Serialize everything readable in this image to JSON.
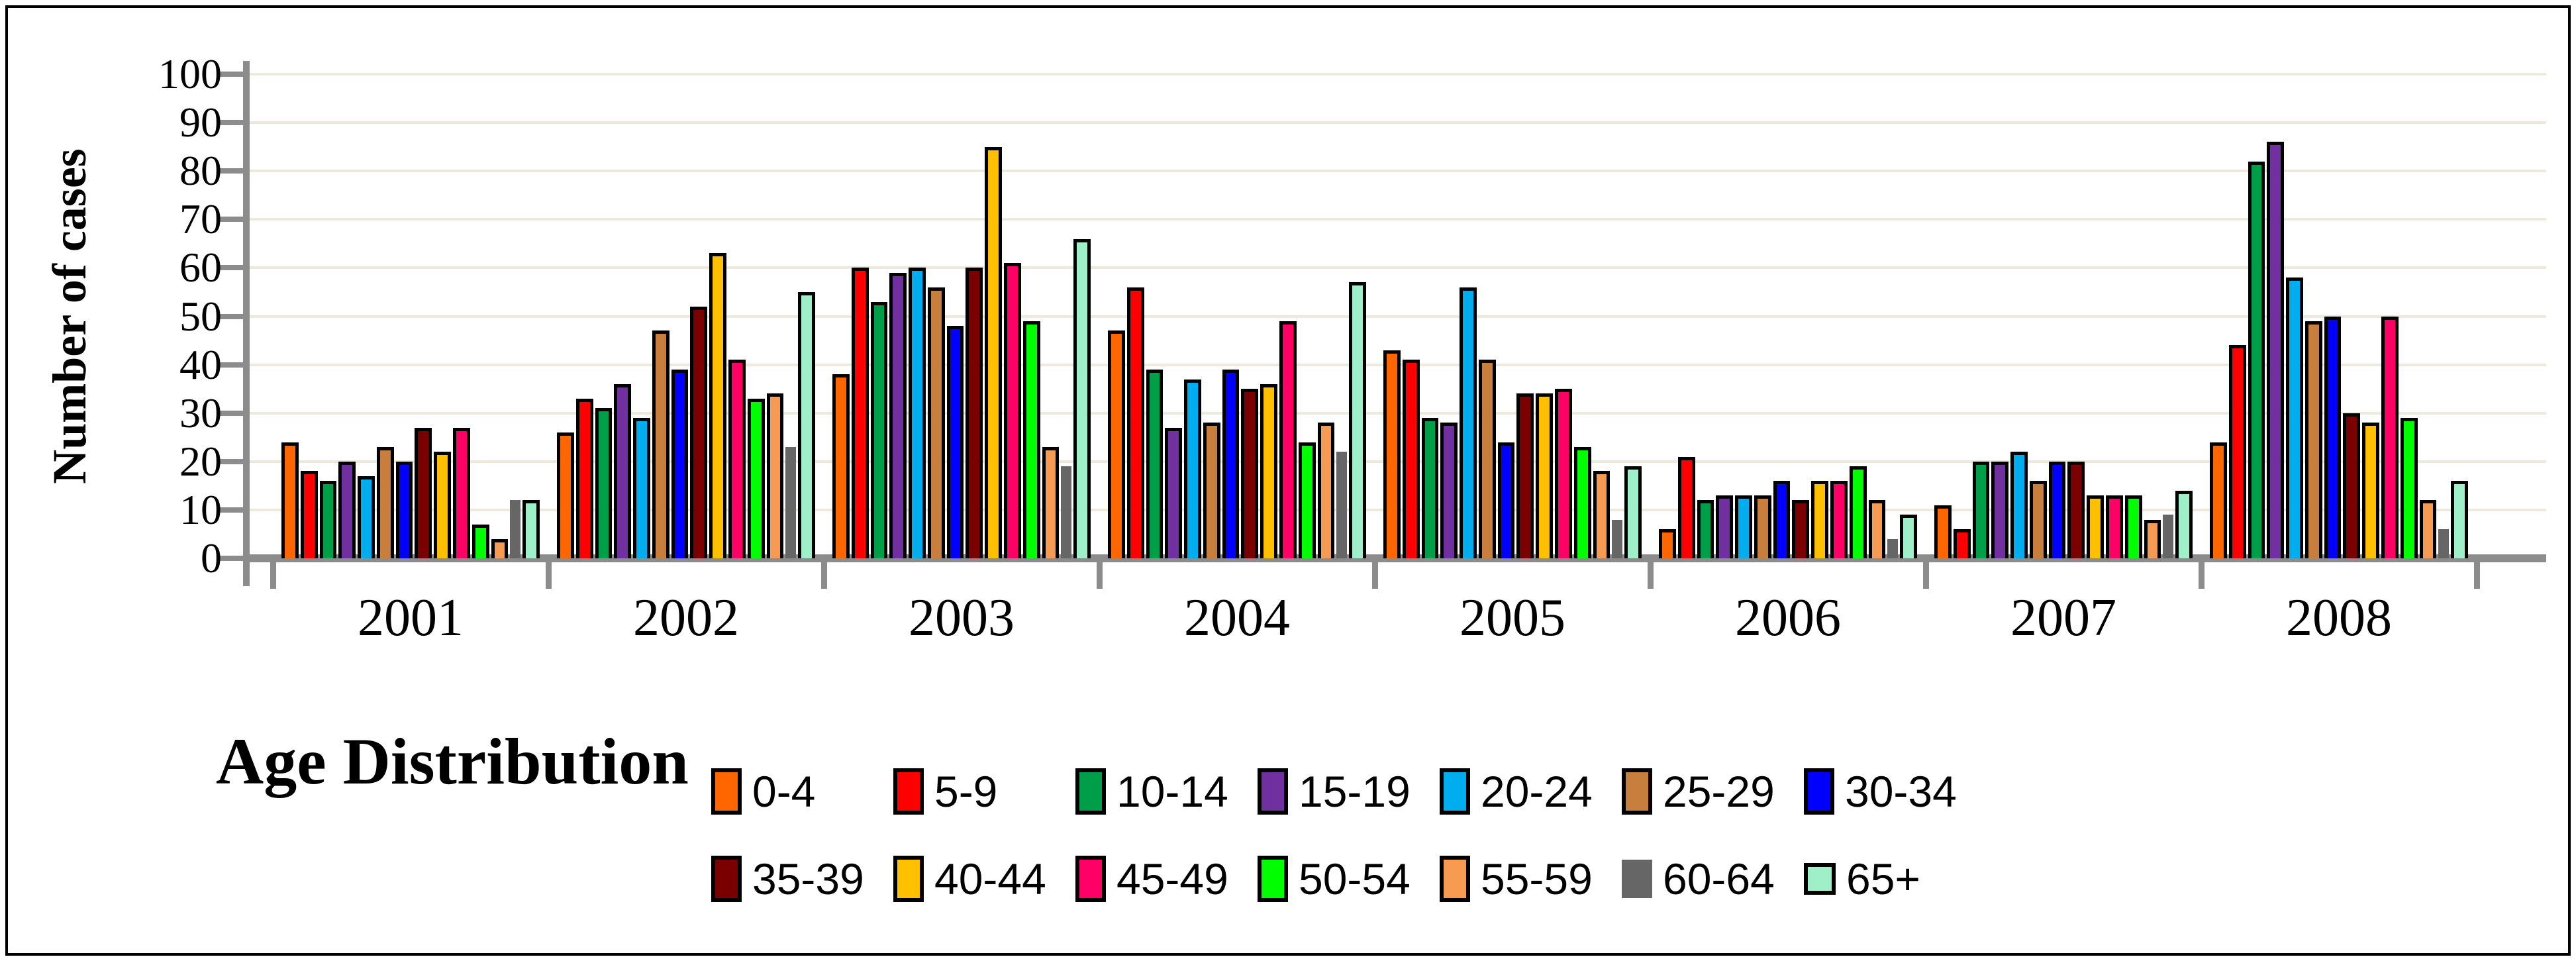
{
  "chart_data": {
    "type": "bar",
    "title": "",
    "ylabel": "Number of cases",
    "xlabel": "",
    "legend_title": "Age Distribution",
    "legend_position": "bottom",
    "grid": "horizontal",
    "ylim": [
      0,
      100
    ],
    "ytick_step": 10,
    "ytick_labels": [
      "0",
      "10",
      "20",
      "30",
      "40",
      "50",
      "60",
      "70",
      "80",
      "90",
      "100"
    ],
    "categories": [
      "2001",
      "2002",
      "2003",
      "2004",
      "2005",
      "2006",
      "2007",
      "2008"
    ],
    "axis_color": "#8C8C8C",
    "gridline_color": "#EDE9DD",
    "bar_outline_color": "#000000",
    "series": [
      {
        "name": "0-4",
        "color": "#FF6600",
        "outlined": true,
        "swatch": "rect",
        "values": [
          24,
          26,
          38,
          47,
          43,
          6,
          11,
          24
        ]
      },
      {
        "name": "5-9",
        "color": "#FE0000",
        "outlined": true,
        "swatch": "rect",
        "values": [
          18,
          33,
          60,
          56,
          41,
          21,
          6,
          44
        ]
      },
      {
        "name": "10-14",
        "color": "#009E49",
        "outlined": true,
        "swatch": "rect",
        "values": [
          16,
          31,
          53,
          39,
          29,
          12,
          20,
          82
        ]
      },
      {
        "name": "15-19",
        "color": "#7030A0",
        "outlined": true,
        "swatch": "rect",
        "values": [
          20,
          36,
          59,
          27,
          28,
          13,
          20,
          86
        ]
      },
      {
        "name": "20-24",
        "color": "#00AEEF",
        "outlined": true,
        "swatch": "rect",
        "values": [
          17,
          29,
          60,
          37,
          56,
          13,
          22,
          58
        ]
      },
      {
        "name": "25-29",
        "color": "#C87E3C",
        "outlined": true,
        "swatch": "rect",
        "values": [
          23,
          47,
          56,
          28,
          41,
          13,
          16,
          49
        ]
      },
      {
        "name": "30-34",
        "color": "#0000FE",
        "outlined": true,
        "swatch": "rect",
        "values": [
          20,
          39,
          48,
          39,
          24,
          16,
          20,
          50
        ]
      },
      {
        "name": "35-39",
        "color": "#7A0000",
        "outlined": true,
        "swatch": "rect",
        "values": [
          27,
          52,
          60,
          35,
          34,
          12,
          20,
          30
        ]
      },
      {
        "name": "40-44",
        "color": "#FFC000",
        "outlined": true,
        "swatch": "rect",
        "values": [
          22,
          63,
          85,
          36,
          34,
          16,
          13,
          28
        ]
      },
      {
        "name": "45-49",
        "color": "#FF0066",
        "outlined": true,
        "swatch": "rect",
        "values": [
          27,
          41,
          61,
          49,
          35,
          16,
          13,
          50
        ]
      },
      {
        "name": "50-54",
        "color": "#00FE00",
        "outlined": true,
        "swatch": "rect",
        "values": [
          7,
          33,
          49,
          24,
          23,
          19,
          13,
          29
        ]
      },
      {
        "name": "55-59",
        "color": "#F79B52",
        "outlined": true,
        "swatch": "rect",
        "values": [
          4,
          34,
          23,
          28,
          18,
          12,
          8,
          12
        ]
      },
      {
        "name": "60-64",
        "color": "#666666",
        "outlined": false,
        "swatch": "rect",
        "values": [
          12,
          23,
          19,
          22,
          8,
          4,
          9,
          6
        ]
      },
      {
        "name": "65+",
        "color": "#9FF0C9",
        "outlined": true,
        "swatch": "square",
        "values": [
          12,
          55,
          66,
          57,
          19,
          9,
          14,
          16
        ]
      }
    ]
  }
}
